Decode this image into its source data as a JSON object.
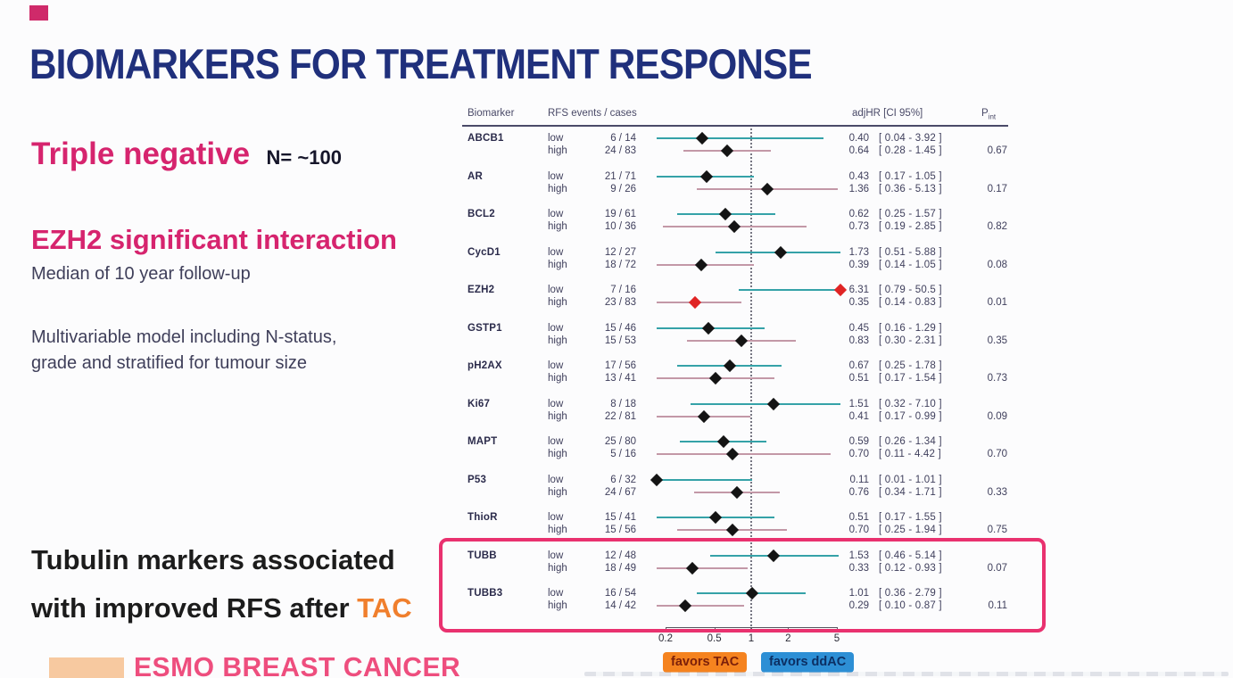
{
  "slide": {
    "title": "BIOMARKERS FOR TREATMENT RESPONSE",
    "notes": {
      "triple_negative": "Triple negative",
      "n_label": "N= ~100",
      "ezh2": "EZH2 significant interaction",
      "median": "Median of 10 year follow-up",
      "model_line1": "Multivariable model including N-status,",
      "model_line2": "grade and stratified for tumour size",
      "tubulin_line1": "Tubulin markers associated",
      "tubulin_line2": "with improved RFS after ",
      "tubulin_highlight": "TAC"
    },
    "footer_logo": "ESMO BREAST CANCER",
    "colors": {
      "title_navy": "#20307c",
      "accent_pink": "#d6246e",
      "tac_orange": "#f07f2d",
      "highlight_box_pink": "#e9316f",
      "esmo_pink": "#ee4e7e"
    }
  },
  "chart_data": {
    "type": "forest",
    "x_axis": {
      "scale": "log",
      "ticks": [
        0.2,
        0.5,
        1,
        2,
        5
      ],
      "reference_line": 1
    },
    "columns": {
      "biomarker": "Biomarker",
      "events": "RFS events / cases",
      "hr": "adjHR  [CI 95%]",
      "p_main": "P",
      "p_sub": "int"
    },
    "legend": [
      {
        "label": "favors TAC",
        "color": "#f5831f",
        "side": "left"
      },
      {
        "label": "favors ddAC",
        "color": "#2d8fd5",
        "side": "right"
      }
    ],
    "series_colors": {
      "low_line": "#35a2a8",
      "high_line": "#c398a7",
      "diamond": "#141414",
      "ezh2_diamond": "#e02424"
    },
    "rows": [
      {
        "biomarker": "ABCB1",
        "low": {
          "events": "6 / 14",
          "hr": 0.4,
          "hr_text": "0.40",
          "ci": [
            0.04,
            3.92
          ],
          "ci_text": "[ 0.04 - 3.92 ]"
        },
        "high": {
          "events": "24 / 83",
          "hr": 0.64,
          "hr_text": "0.64",
          "ci": [
            0.28,
            1.45
          ],
          "ci_text": "[ 0.28 - 1.45 ]"
        },
        "p_int": "0.67",
        "highlight": false
      },
      {
        "biomarker": "AR",
        "low": {
          "events": "21 / 71",
          "hr": 0.43,
          "hr_text": "0.43",
          "ci": [
            0.17,
            1.05
          ],
          "ci_text": "[ 0.17 - 1.05 ]"
        },
        "high": {
          "events": "9 / 26",
          "hr": 1.36,
          "hr_text": "1.36",
          "ci": [
            0.36,
            5.13
          ],
          "ci_text": "[ 0.36 - 5.13 ]"
        },
        "p_int": "0.17",
        "highlight": false
      },
      {
        "biomarker": "BCL2",
        "low": {
          "events": "19 / 61",
          "hr": 0.62,
          "hr_text": "0.62",
          "ci": [
            0.25,
            1.57
          ],
          "ci_text": "[ 0.25 - 1.57 ]"
        },
        "high": {
          "events": "10 / 36",
          "hr": 0.73,
          "hr_text": "0.73",
          "ci": [
            0.19,
            2.85
          ],
          "ci_text": "[ 0.19 - 2.85 ]"
        },
        "p_int": "0.82",
        "highlight": false
      },
      {
        "biomarker": "CycD1",
        "low": {
          "events": "12 / 27",
          "hr": 1.73,
          "hr_text": "1.73",
          "ci": [
            0.51,
            5.88
          ],
          "ci_text": "[ 0.51 - 5.88 ]"
        },
        "high": {
          "events": "18 / 72",
          "hr": 0.39,
          "hr_text": "0.39",
          "ci": [
            0.14,
            1.05
          ],
          "ci_text": "[ 0.14 - 1.05 ]"
        },
        "p_int": "0.08",
        "highlight": false
      },
      {
        "biomarker": "EZH2",
        "diamond_color": "#e02424",
        "low": {
          "events": "7 / 16",
          "hr": 6.31,
          "hr_text": "6.31",
          "ci": [
            0.79,
            50.5
          ],
          "ci_text": "[ 0.79 - 50.5 ]"
        },
        "high": {
          "events": "23 / 83",
          "hr": 0.35,
          "hr_text": "0.35",
          "ci": [
            0.14,
            0.83
          ],
          "ci_text": "[ 0.14 - 0.83 ]"
        },
        "p_int": "0.01",
        "highlight": false
      },
      {
        "biomarker": "GSTP1",
        "low": {
          "events": "15 / 46",
          "hr": 0.45,
          "hr_text": "0.45",
          "ci": [
            0.16,
            1.29
          ],
          "ci_text": "[ 0.16 - 1.29 ]"
        },
        "high": {
          "events": "15 / 53",
          "hr": 0.83,
          "hr_text": "0.83",
          "ci": [
            0.3,
            2.31
          ],
          "ci_text": "[ 0.30 - 2.31 ]"
        },
        "p_int": "0.35",
        "highlight": false
      },
      {
        "biomarker": "pH2AX",
        "low": {
          "events": "17 / 56",
          "hr": 0.67,
          "hr_text": "0.67",
          "ci": [
            0.25,
            1.78
          ],
          "ci_text": "[ 0.25 - 1.78 ]"
        },
        "high": {
          "events": "13 / 41",
          "hr": 0.51,
          "hr_text": "0.51",
          "ci": [
            0.17,
            1.54
          ],
          "ci_text": "[ 0.17 - 1.54 ]"
        },
        "p_int": "0.73",
        "highlight": false
      },
      {
        "biomarker": "Ki67",
        "low": {
          "events": "8 / 18",
          "hr": 1.51,
          "hr_text": "1.51",
          "ci": [
            0.32,
            7.1
          ],
          "ci_text": "[ 0.32 - 7.10 ]"
        },
        "high": {
          "events": "22 / 81",
          "hr": 0.41,
          "hr_text": "0.41",
          "ci": [
            0.17,
            0.99
          ],
          "ci_text": "[ 0.17 - 0.99 ]"
        },
        "p_int": "0.09",
        "highlight": false
      },
      {
        "biomarker": "MAPT",
        "low": {
          "events": "25 / 80",
          "hr": 0.59,
          "hr_text": "0.59",
          "ci": [
            0.26,
            1.34
          ],
          "ci_text": "[ 0.26 - 1.34 ]"
        },
        "high": {
          "events": "5 / 16",
          "hr": 0.7,
          "hr_text": "0.70",
          "ci": [
            0.11,
            4.42
          ],
          "ci_text": "[ 0.11 - 4.42 ]"
        },
        "p_int": "0.70",
        "highlight": false
      },
      {
        "biomarker": "P53",
        "low": {
          "events": "6 / 32",
          "hr": 0.11,
          "hr_text": "0.11",
          "ci": [
            0.01,
            1.01
          ],
          "ci_text": "[ 0.01 - 1.01 ]"
        },
        "high": {
          "events": "24 / 67",
          "hr": 0.76,
          "hr_text": "0.76",
          "ci": [
            0.34,
            1.71
          ],
          "ci_text": "[ 0.34 - 1.71 ]"
        },
        "p_int": "0.33",
        "highlight": false
      },
      {
        "biomarker": "ThioR",
        "low": {
          "events": "15 / 41",
          "hr": 0.51,
          "hr_text": "0.51",
          "ci": [
            0.17,
            1.55
          ],
          "ci_text": "[ 0.17 - 1.55 ]"
        },
        "high": {
          "events": "15 / 56",
          "hr": 0.7,
          "hr_text": "0.70",
          "ci": [
            0.25,
            1.94
          ],
          "ci_text": "[ 0.25 - 1.94 ]"
        },
        "p_int": "0.75",
        "highlight": false
      },
      {
        "biomarker": "TUBB",
        "low": {
          "events": "12 / 48",
          "hr": 1.53,
          "hr_text": "1.53",
          "ci": [
            0.46,
            5.14
          ],
          "ci_text": "[ 0.46 - 5.14 ]"
        },
        "high": {
          "events": "18 / 49",
          "hr": 0.33,
          "hr_text": "0.33",
          "ci": [
            0.12,
            0.93
          ],
          "ci_text": "[ 0.12 - 0.93 ]"
        },
        "p_int": "0.07",
        "highlight": true
      },
      {
        "biomarker": "TUBB3",
        "low": {
          "events": "16 / 54",
          "hr": 1.01,
          "hr_text": "1.01",
          "ci": [
            0.36,
            2.79
          ],
          "ci_text": "[ 0.36 - 2.79 ]"
        },
        "high": {
          "events": "14 / 42",
          "hr": 0.29,
          "hr_text": "0.29",
          "ci": [
            0.1,
            0.87
          ],
          "ci_text": "[ 0.10 - 0.87 ]"
        },
        "p_int": "0.11",
        "highlight": true
      }
    ]
  }
}
